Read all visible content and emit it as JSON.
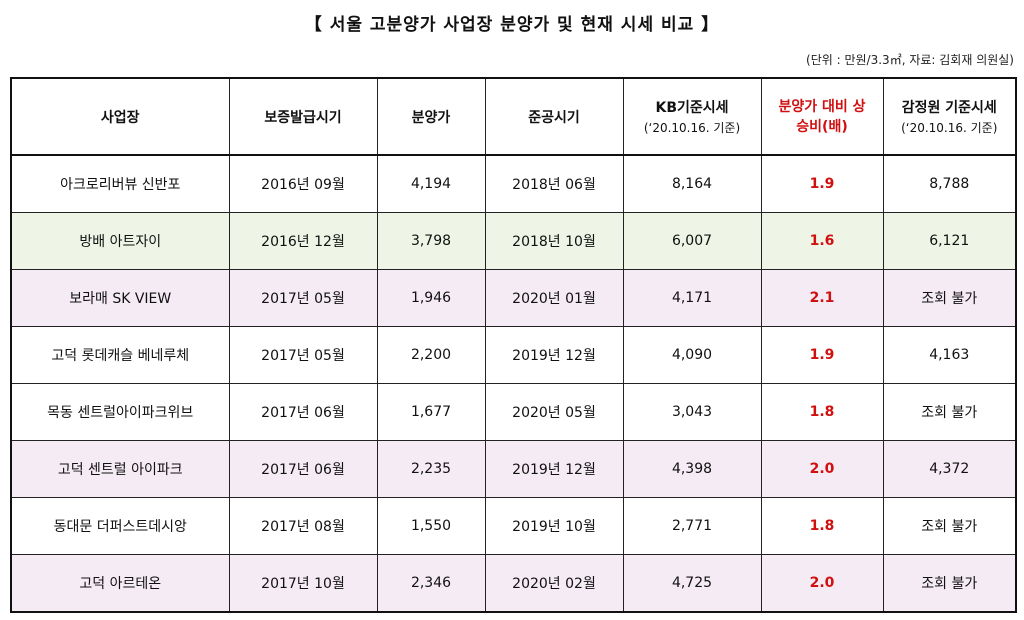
{
  "title": "【 서울 고분양가 사업장 분양가 및 현재 시세 비교 】",
  "note": "(단위 : 만원/3.3㎡, 자료: 김회재 의원실)",
  "headers": [
    {
      "label": "사업장",
      "sub": ""
    },
    {
      "label": "보증발급시기",
      "sub": ""
    },
    {
      "label": "분양가",
      "sub": ""
    },
    {
      "label": "준공시기",
      "sub": ""
    },
    {
      "label": "KB기준시세",
      "sub": "(‘20.10.16. 기준)"
    },
    {
      "label": "분양가 대비 상승비(배)",
      "sub": ""
    },
    {
      "label": "감정원 기준시세",
      "sub": "(‘20.10.16. 기준)"
    }
  ],
  "rows": [
    {
      "site": "아크로리버뷰 신반포",
      "guarantee": "2016년 09월",
      "price": "4,194",
      "completion": "2018년 06월",
      "kb": "8,164",
      "ratio": "1.9",
      "kab": "8,788",
      "bg": "white"
    },
    {
      "site": "방배 아트자이",
      "guarantee": "2016년 12월",
      "price": "3,798",
      "completion": "2018년 10월",
      "kb": "6,007",
      "ratio": "1.6",
      "kab": "6,121",
      "bg": "green"
    },
    {
      "site": "보라매 SK VIEW",
      "guarantee": "2017년 05월",
      "price": "1,946",
      "completion": "2020년 01월",
      "kb": "4,171",
      "ratio": "2.1",
      "kab": "조회 불가",
      "bg": "pink"
    },
    {
      "site": "고덕 롯데캐슬 베네루체",
      "guarantee": "2017년 05월",
      "price": "2,200",
      "completion": "2019년 12월",
      "kb": "4,090",
      "ratio": "1.9",
      "kab": "4,163",
      "bg": "white"
    },
    {
      "site": "목동 센트럴아이파크위브",
      "guarantee": "2017년 06월",
      "price": "1,677",
      "completion": "2020년 05월",
      "kb": "3,043",
      "ratio": "1.8",
      "kab": "조회 불가",
      "bg": "white"
    },
    {
      "site": "고덕 센트럴 아이파크",
      "guarantee": "2017년 06월",
      "price": "2,235",
      "completion": "2019년 12월",
      "kb": "4,398",
      "ratio": "2.0",
      "kab": "4,372",
      "bg": "pink"
    },
    {
      "site": "동대문 더퍼스트데시앙",
      "guarantee": "2017년 08월",
      "price": "1,550",
      "completion": "2019년 10월",
      "kb": "2,771",
      "ratio": "1.8",
      "kab": "조회 불가",
      "bg": "white"
    },
    {
      "site": "고덕 아르테온",
      "guarantee": "2017년 10월",
      "price": "2,346",
      "completion": "2020년 02월",
      "kb": "4,725",
      "ratio": "2.0",
      "kab": "조회 불가",
      "bg": "pink"
    }
  ]
}
